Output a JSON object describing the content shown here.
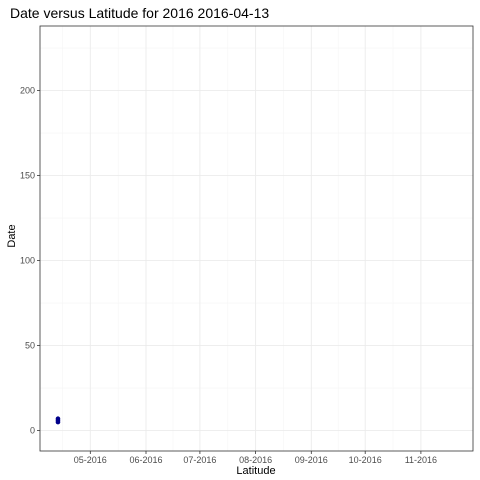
{
  "chart_data": {
    "type": "scatter",
    "title": "Date versus Latitude for 2016 2016-04-13",
    "xlabel": "Latitude",
    "ylabel": "Date",
    "x_axis_type": "date",
    "xlim": [
      "2016-04-03",
      "2016-11-30"
    ],
    "ylim": [
      -12,
      238
    ],
    "x_ticks": [
      {
        "value": "2016-05-01",
        "label": "05-2016"
      },
      {
        "value": "2016-06-01",
        "label": "06-2016"
      },
      {
        "value": "2016-07-01",
        "label": "07-2016"
      },
      {
        "value": "2016-08-01",
        "label": "08-2016"
      },
      {
        "value": "2016-09-01",
        "label": "09-2016"
      },
      {
        "value": "2016-10-01",
        "label": "10-2016"
      },
      {
        "value": "2016-11-01",
        "label": "11-2016"
      }
    ],
    "y_ticks": [
      0,
      50,
      100,
      150,
      200
    ],
    "grid": true,
    "points": [
      {
        "x": "2016-04-13",
        "y": 5
      },
      {
        "x": "2016-04-13",
        "y": 6
      },
      {
        "x": "2016-04-13",
        "y": 7
      }
    ],
    "colors": {
      "point": "#00008B",
      "grid_major": "#ebebeb",
      "grid_minor": "#f5f5f5",
      "panel_border": "#333333"
    }
  }
}
